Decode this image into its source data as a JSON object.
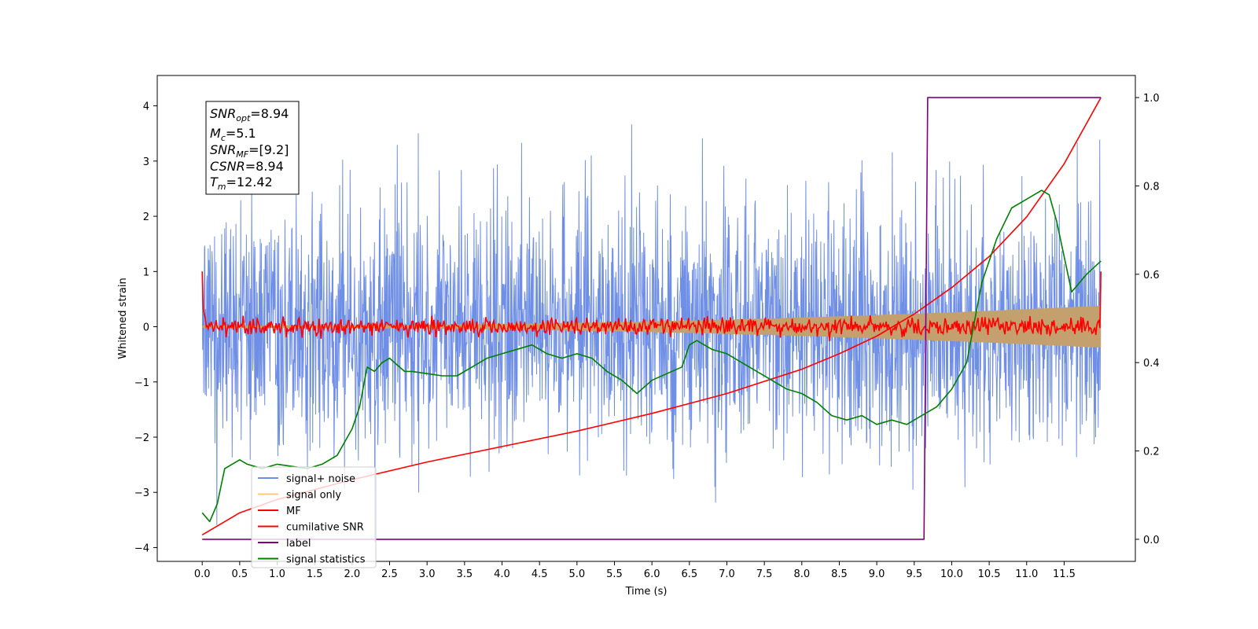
{
  "chart_data": {
    "type": "line",
    "xlabel": "Time (s)",
    "ylabel": "Whitened strain",
    "xlim": [
      -0.6,
      12.45
    ],
    "ylim": [
      -4.25,
      4.55
    ],
    "y2lim": [
      -0.05,
      1.05
    ],
    "xticks": [
      "0.0",
      "0.5",
      "1.0",
      "1.5",
      "2.0",
      "2.5",
      "3.0",
      "3.5",
      "4.0",
      "4.5",
      "5.0",
      "5.5",
      "6.0",
      "6.5",
      "7.0",
      "7.5",
      "8.0",
      "8.5",
      "9.0",
      "9.5",
      "10.0",
      "10.5",
      "11.0",
      "11.5"
    ],
    "yticks": [
      "−4",
      "−3",
      "−2",
      "−1",
      "0",
      "1",
      "2",
      "3",
      "4"
    ],
    "y2ticks": [
      "0.0",
      "0.2",
      "0.4",
      "0.6",
      "0.8",
      "1.0"
    ],
    "info_box": {
      "snr_opt": {
        "sym": "SNR",
        "sub": "opt",
        "value": "=8.94"
      },
      "mc": {
        "sym": "M",
        "sub": "c",
        "value": "=5.1"
      },
      "snr_mf": {
        "sym": "SNR",
        "sub": "MF",
        "value": "=[9.2]"
      },
      "csnr": {
        "sym": "CSNR",
        "value": "=8.94"
      },
      "tm": {
        "sym": "T",
        "sub": "m",
        "value": "=12.42"
      }
    },
    "legend": {
      "placement": "lower-left",
      "entries": [
        {
          "label": "signal+ noise",
          "color": "#6f8fe6"
        },
        {
          "label": "signal only",
          "color": "#ffc87a"
        },
        {
          "label": "MF",
          "color": "#ff0000"
        },
        {
          "label": "cumilative SNR",
          "color": "#ff0000"
        },
        {
          "label": "label",
          "color": "#800080"
        },
        {
          "label": "signal statistics",
          "color": "#008000"
        }
      ]
    },
    "series": [
      {
        "name": "signal+ noise",
        "axis": "left",
        "t_start": 0.0,
        "t_end": 11.99,
        "envelope": 2.4,
        "color": "#6f8fe6"
      },
      {
        "name": "signal only",
        "axis": "left",
        "t_start": 0.0,
        "t_end": 11.99,
        "amplitude_start": 0.02,
        "amplitude_end": 0.38,
        "color": "#ffc87a"
      },
      {
        "name": "MF",
        "axis": "left",
        "t_start": 0.0,
        "t_end": 11.99,
        "start_value": 1.0,
        "end_value": 1.0,
        "color": "#ff0000"
      },
      {
        "name": "cumilative SNR",
        "axis": "right",
        "x": [
          0.0,
          0.5,
          1.0,
          2.0,
          3.0,
          4.0,
          5.0,
          6.0,
          7.0,
          8.0,
          8.5,
          9.0,
          9.5,
          10.0,
          10.5,
          11.0,
          11.5,
          11.99
        ],
        "y": [
          0.01,
          0.06,
          0.09,
          0.135,
          0.175,
          0.21,
          0.245,
          0.285,
          0.33,
          0.385,
          0.42,
          0.46,
          0.51,
          0.57,
          0.64,
          0.73,
          0.85,
          1.0
        ],
        "color": "#ff0000"
      },
      {
        "name": "label",
        "axis": "right",
        "x": [
          0.0,
          9.63,
          9.68,
          11.99
        ],
        "y": [
          0.0,
          0.0,
          1.0,
          1.0
        ],
        "color": "#800080"
      },
      {
        "name": "signal statistics",
        "axis": "right",
        "x": [
          0.0,
          0.1,
          0.2,
          0.3,
          0.4,
          0.5,
          0.6,
          0.7,
          0.8,
          1.0,
          1.2,
          1.4,
          1.6,
          1.8,
          2.0,
          2.1,
          2.2,
          2.3,
          2.4,
          2.5,
          2.6,
          2.7,
          2.8,
          3.0,
          3.2,
          3.4,
          3.6,
          3.8,
          4.0,
          4.2,
          4.4,
          4.5,
          4.6,
          4.8,
          5.0,
          5.2,
          5.4,
          5.6,
          5.8,
          6.0,
          6.2,
          6.4,
          6.5,
          6.6,
          6.8,
          7.0,
          7.2,
          7.4,
          7.6,
          7.8,
          8.0,
          8.2,
          8.4,
          8.6,
          8.8,
          9.0,
          9.2,
          9.4,
          9.6,
          9.8,
          10.0,
          10.2,
          10.4,
          10.6,
          10.8,
          11.0,
          11.2,
          11.3,
          11.4,
          11.6,
          11.8,
          11.99
        ],
        "y": [
          0.06,
          0.04,
          0.08,
          0.16,
          0.17,
          0.18,
          0.17,
          0.165,
          0.16,
          0.17,
          0.165,
          0.16,
          0.17,
          0.19,
          0.25,
          0.3,
          0.39,
          0.38,
          0.4,
          0.41,
          0.395,
          0.38,
          0.38,
          0.375,
          0.37,
          0.37,
          0.39,
          0.41,
          0.42,
          0.43,
          0.44,
          0.43,
          0.42,
          0.41,
          0.42,
          0.41,
          0.38,
          0.36,
          0.33,
          0.36,
          0.375,
          0.39,
          0.44,
          0.45,
          0.43,
          0.42,
          0.4,
          0.38,
          0.36,
          0.34,
          0.33,
          0.31,
          0.28,
          0.27,
          0.28,
          0.26,
          0.27,
          0.26,
          0.28,
          0.3,
          0.34,
          0.4,
          0.58,
          0.68,
          0.75,
          0.77,
          0.79,
          0.78,
          0.72,
          0.56,
          0.6,
          0.63
        ],
        "color": "#008000"
      }
    ]
  }
}
